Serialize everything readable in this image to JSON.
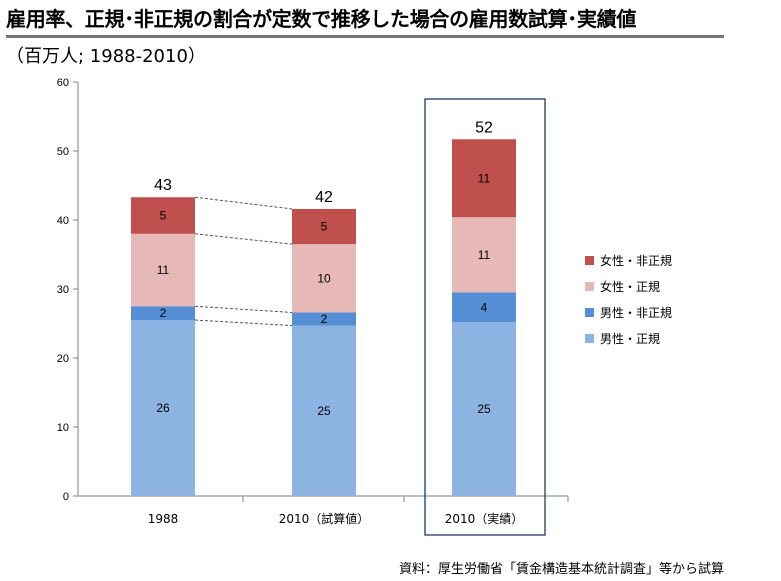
{
  "title": "雇用率、正規･非正規の割合が定数で推移した場合の雇用数試算･実績値",
  "subtitle": "（百万人; 1988-2010）",
  "source": "資料：厚生労働省「賃金構造基本統計調査」等から試算",
  "chart_data": {
    "type": "bar",
    "stacked": true,
    "categories": [
      "1988",
      "2010（試算値）",
      "2010（実績）"
    ],
    "series": [
      {
        "name": "男性・正規",
        "color": "#8DB3E2",
        "values": [
          26,
          25,
          25
        ],
        "labels": [
          "26",
          "25",
          "25"
        ]
      },
      {
        "name": "男性・非正規",
        "color": "#558ED5",
        "values": [
          2,
          2,
          4
        ],
        "labels": [
          "2",
          "2",
          "4"
        ]
      },
      {
        "name": "女性・正規",
        "color": "#E6B9B8",
        "values": [
          11,
          10,
          11
        ],
        "labels": [
          "11",
          "10",
          "11"
        ]
      },
      {
        "name": "女性・非正規",
        "color": "#C0504D",
        "values": [
          5,
          5,
          11
        ],
        "labels": [
          "5",
          "5",
          "11"
        ]
      }
    ],
    "display_values": [
      [
        25.5,
        24.7,
        25.2
      ],
      [
        2.0,
        1.9,
        4.3
      ],
      [
        10.5,
        9.9,
        10.9
      ],
      [
        5.3,
        5.1,
        11.3
      ]
    ],
    "totals": [
      "43",
      "42",
      "52"
    ],
    "yaxis": {
      "min": 0,
      "max": 60,
      "step": 10,
      "ticks": [
        "0",
        "10",
        "20",
        "30",
        "40",
        "50",
        "60"
      ]
    },
    "highlight_category": 2,
    "legend_position": "right",
    "grid": false,
    "connector_lines": true
  }
}
